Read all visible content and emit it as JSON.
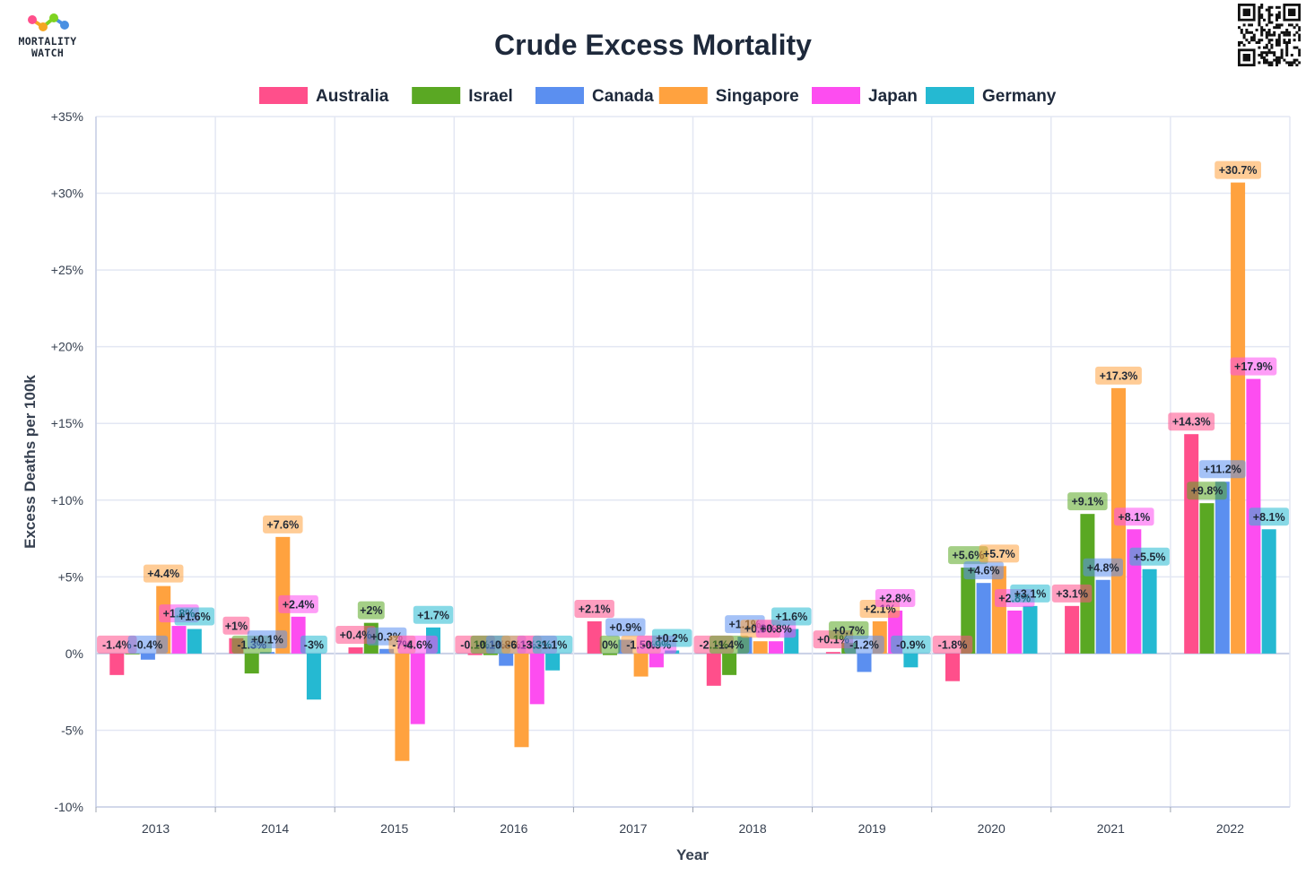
{
  "brand": {
    "line1": "MORTALITY",
    "line2": "WATCH",
    "qr_icon": "qr-code-icon"
  },
  "chart_data": {
    "type": "bar",
    "title": "Crude Excess Mortality",
    "xlabel": "Year",
    "ylabel": "Excess Deaths per 100k",
    "ylim": [
      -10,
      35
    ],
    "yticks": [
      -10,
      -5,
      0,
      5,
      10,
      15,
      20,
      25,
      30,
      35
    ],
    "ytick_labels": [
      "-10%",
      "-5%",
      "0%",
      "+5%",
      "+10%",
      "+15%",
      "+20%",
      "+25%",
      "+30%",
      "+35%"
    ],
    "grid": true,
    "legend_position": "top-center",
    "categories": [
      "2013",
      "2014",
      "2015",
      "2016",
      "2017",
      "2018",
      "2019",
      "2020",
      "2021",
      "2022"
    ],
    "series": [
      {
        "name": "Australia",
        "color": "#ff4f8b",
        "values": [
          -1.4,
          1.0,
          0.4,
          -0.1,
          2.1,
          -2.1,
          0.1,
          -1.8,
          3.1,
          14.3
        ],
        "labels": [
          "-1.4%",
          "+1%",
          "+0.4%",
          "-0.1%",
          "+2.1%",
          "-2.1%",
          "+0.1%",
          "-1.8%",
          "+3.1%",
          "+14.3%"
        ]
      },
      {
        "name": "Israel",
        "color": "#5aa823",
        "values": [
          0,
          -1.3,
          2.0,
          -0.1,
          -0.1,
          -1.4,
          0.7,
          5.6,
          9.1,
          9.8
        ],
        "labels": [
          "",
          "-1.3%",
          "+2%",
          "-0.1%",
          "0%",
          "-1.4%",
          "+0.7%",
          "+5.6%",
          "+9.1%",
          "+9.8%"
        ]
      },
      {
        "name": "Canada",
        "color": "#5b8ff0",
        "values": [
          -0.4,
          0.1,
          0.3,
          -0.8,
          0.9,
          1.1,
          -1.2,
          4.6,
          4.8,
          11.2
        ],
        "labels": [
          "-0.4%",
          "+0.1%",
          "+0.3%",
          "-0.8%",
          "+0.9%",
          "+1.1%",
          "-1.2%",
          "+4.6%",
          "+4.8%",
          "+11.2%"
        ]
      },
      {
        "name": "Singapore",
        "color": "#ffa23f",
        "values": [
          4.4,
          7.6,
          -7.0,
          -6.1,
          -1.5,
          0.8,
          2.1,
          5.7,
          17.3,
          30.7
        ],
        "labels": [
          "+4.4%",
          "+7.6%",
          "-7%",
          "-6.1%",
          "-1.5%",
          "+0.8%",
          "+2.1%",
          "+5.7%",
          "+17.3%",
          "+30.7%"
        ]
      },
      {
        "name": "Japan",
        "color": "#fd4df0",
        "values": [
          1.8,
          2.4,
          -4.6,
          -3.3,
          -0.9,
          0.8,
          2.8,
          2.8,
          8.1,
          17.9
        ],
        "labels": [
          "+1.8%",
          "+2.4%",
          "-4.6%",
          "-3.3%",
          "-0.9%",
          "+0.8%",
          "+2.8%",
          "+2.8%",
          "+8.1%",
          "+17.9%"
        ]
      },
      {
        "name": "Germany",
        "color": "#25b9d2",
        "values": [
          1.6,
          -3.0,
          1.7,
          -1.1,
          0.2,
          1.6,
          -0.9,
          3.1,
          5.5,
          8.1
        ],
        "labels": [
          "+1.6%",
          "-3%",
          "+1.7%",
          "-1.1%",
          "+0.2%",
          "+1.6%",
          "-0.9%",
          "+3.1%",
          "+5.5%",
          "+8.1%"
        ]
      }
    ]
  }
}
